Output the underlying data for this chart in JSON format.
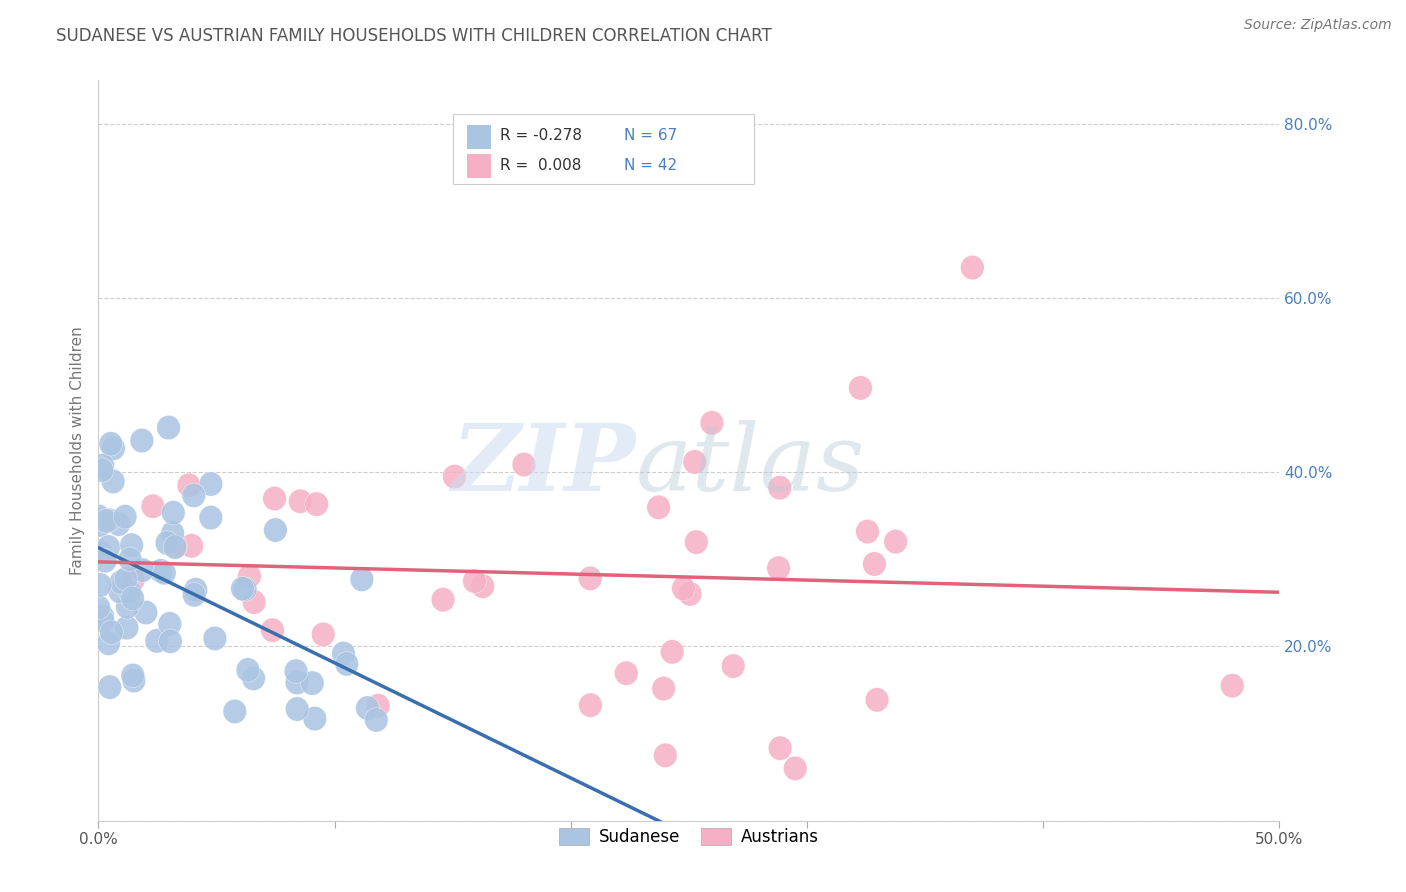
{
  "title": "SUDANESE VS AUSTRIAN FAMILY HOUSEHOLDS WITH CHILDREN CORRELATION CHART",
  "source": "Source: ZipAtlas.com",
  "ylabel": "Family Households with Children",
  "xlim": [
    0.0,
    0.5
  ],
  "ylim": [
    0.0,
    0.85
  ],
  "x_ticks": [
    0.0,
    0.1,
    0.2,
    0.3,
    0.4,
    0.5
  ],
  "y_ticks": [
    0.0,
    0.2,
    0.4,
    0.6,
    0.8
  ],
  "y_tick_labels": [
    "",
    "20.0%",
    "40.0%",
    "60.0%",
    "80.0%"
  ],
  "sudanese_color": "#aac4e2",
  "austrian_color": "#f5b0c5",
  "sudanese_line_color": "#3a6fad",
  "austrian_line_color": "#e0637a",
  "legend_r_sudanese": "R = -0.278",
  "legend_n_sudanese": "N = 67",
  "legend_r_austrian": "R =  0.008",
  "legend_n_austrian": "N = 42",
  "watermark_zip": "ZIP",
  "watermark_atlas": "atlas",
  "background_color": "#ffffff",
  "grid_color": "#c8c8c8",
  "title_color": "#555555",
  "source_color": "#777777",
  "ytick_color": "#4a7fc1",
  "xtick_color": "#555555"
}
